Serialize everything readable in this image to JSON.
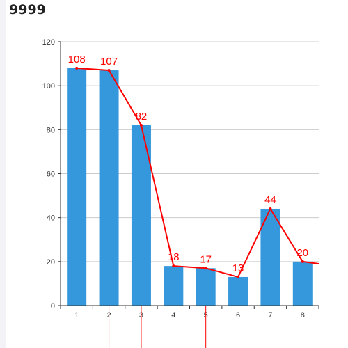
{
  "page": {
    "title": "9999"
  },
  "colors": {
    "bar": "#3598dc",
    "line": "#ff0000",
    "label": "#ff0000",
    "grid": "#cccccc",
    "axis": "#333333",
    "tick_text": "#333333"
  },
  "chart_data": {
    "type": "bar",
    "title": "9999",
    "xlabel": "",
    "ylabel": "",
    "categories": [
      "1",
      "2",
      "3",
      "4",
      "5",
      "6",
      "7",
      "8"
    ],
    "ylim": [
      0,
      120
    ],
    "yticks": [
      0,
      20,
      40,
      60,
      80,
      100,
      120
    ],
    "grid": true,
    "series": [
      {
        "type": "bar",
        "values": [
          108,
          107,
          82,
          18,
          17,
          13,
          44,
          20
        ]
      },
      {
        "type": "line",
        "values": [
          108,
          107,
          82,
          18,
          17,
          13,
          44,
          20
        ],
        "continues_to": 19
      }
    ],
    "data_labels": [
      "108",
      "107",
      "82",
      "18",
      "17",
      "13",
      "44",
      "20"
    ],
    "markers_below_axis_at": [
      "2",
      "3",
      "5"
    ]
  }
}
